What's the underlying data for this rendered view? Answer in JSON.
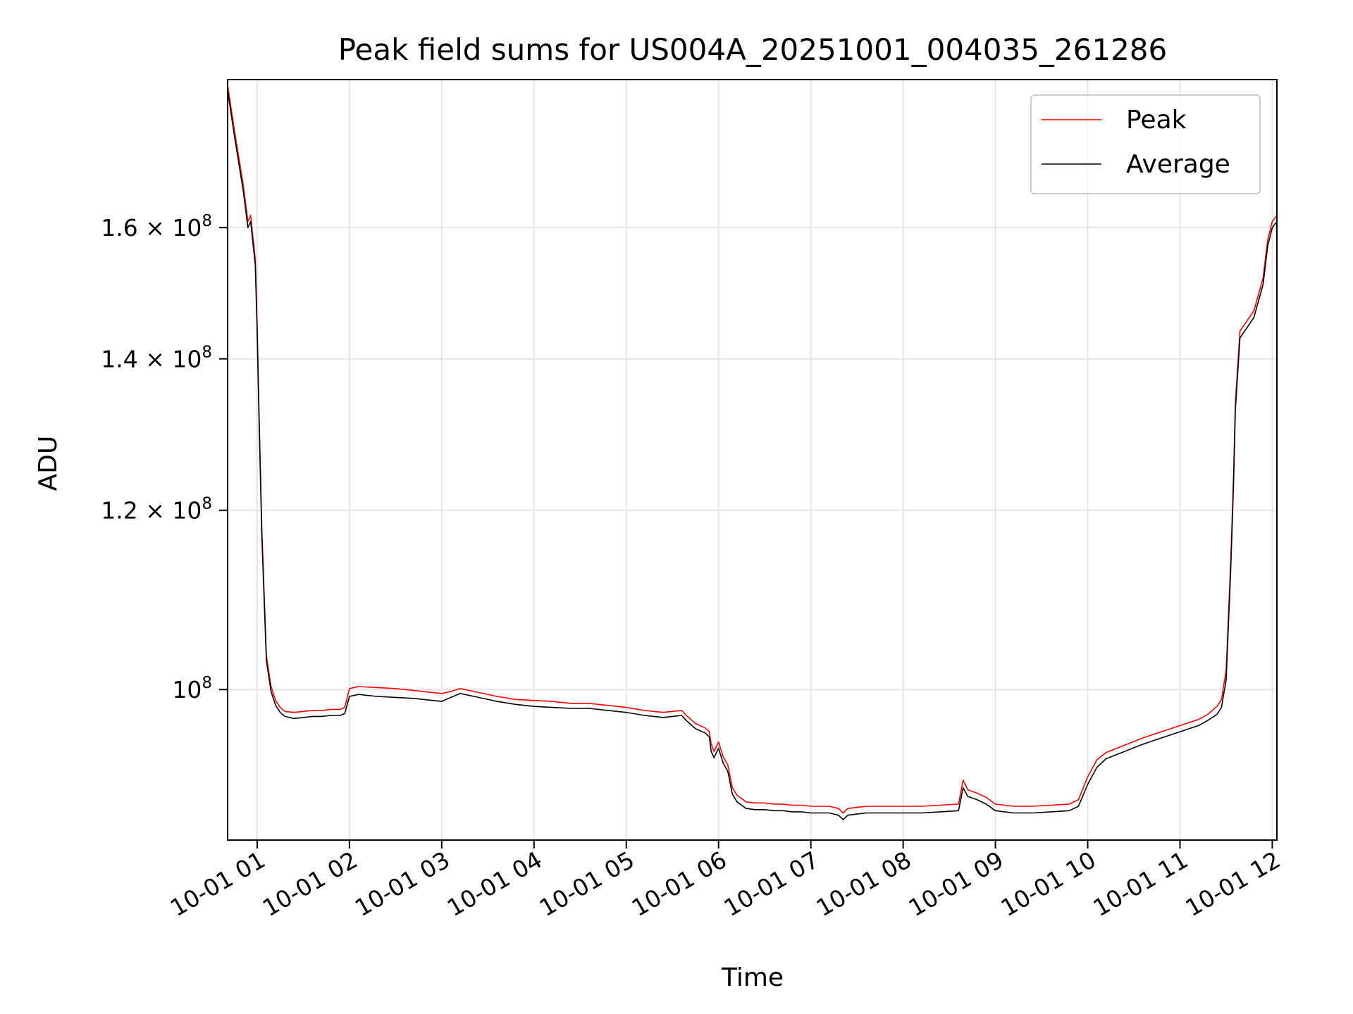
{
  "chart_data": {
    "type": "line",
    "title": "Peak field sums for US004A_20251001_004035_261286",
    "xlabel": "Time",
    "ylabel": "ADU",
    "yscale": "log",
    "xlim": [
      0.68,
      12.05
    ],
    "ylim": [
      85800000,
      186000000
    ],
    "x_ticks": [
      {
        "value": 1,
        "label": "10-01 01"
      },
      {
        "value": 2,
        "label": "10-01 02"
      },
      {
        "value": 3,
        "label": "10-01 03"
      },
      {
        "value": 4,
        "label": "10-01 04"
      },
      {
        "value": 5,
        "label": "10-01 05"
      },
      {
        "value": 6,
        "label": "10-01 06"
      },
      {
        "value": 7,
        "label": "10-01 07"
      },
      {
        "value": 8,
        "label": "10-01 08"
      },
      {
        "value": 9,
        "label": "10-01 09"
      },
      {
        "value": 10,
        "label": "10-01 10"
      },
      {
        "value": 11,
        "label": "10-01 11"
      },
      {
        "value": 12,
        "label": "10-01 12"
      }
    ],
    "y_ticks": [
      {
        "value": 100000000,
        "mant": "10",
        "exp": "8"
      },
      {
        "value": 120000000,
        "mant": "1.2 × 10",
        "exp": "8"
      },
      {
        "value": 140000000,
        "mant": "1.4 × 10",
        "exp": "8"
      },
      {
        "value": 160000000,
        "mant": "1.6 × 10",
        "exp": "8"
      }
    ],
    "grid": true,
    "legend_position": "top-right",
    "series": [
      {
        "name": "Peak",
        "color": "#ff0000",
        "x": [
          0.68,
          0.75,
          0.85,
          0.9,
          0.93,
          0.95,
          0.98,
          1.0,
          1.02,
          1.05,
          1.1,
          1.15,
          1.2,
          1.25,
          1.3,
          1.4,
          1.5,
          1.6,
          1.7,
          1.8,
          1.9,
          1.95,
          2.0,
          2.1,
          2.3,
          2.5,
          2.7,
          2.9,
          3.0,
          3.1,
          3.2,
          3.4,
          3.6,
          3.8,
          4.0,
          4.2,
          4.4,
          4.6,
          4.8,
          5.0,
          5.2,
          5.4,
          5.5,
          5.6,
          5.65,
          5.7,
          5.75,
          5.85,
          5.9,
          5.92,
          5.95,
          6.0,
          6.05,
          6.1,
          6.15,
          6.2,
          6.25,
          6.3,
          6.4,
          6.5,
          6.6,
          6.7,
          6.8,
          6.9,
          7.0,
          7.1,
          7.2,
          7.3,
          7.35,
          7.4,
          7.5,
          7.6,
          7.8,
          8.0,
          8.2,
          8.4,
          8.6,
          8.65,
          8.7,
          8.8,
          8.9,
          9.0,
          9.2,
          9.4,
          9.6,
          9.8,
          9.9,
          10.0,
          10.1,
          10.2,
          10.4,
          10.6,
          10.8,
          11.0,
          11.2,
          11.3,
          11.4,
          11.45,
          11.5,
          11.55,
          11.58,
          11.6,
          11.65,
          11.7,
          11.8,
          11.9,
          11.95,
          12.0,
          12.05
        ],
        "y": [
          185000000,
          177000000,
          167000000,
          161000000,
          162000000,
          159000000,
          155000000,
          145000000,
          133000000,
          118000000,
          103500000,
          100300000,
          98900000,
          98200000,
          97800000,
          97700000,
          97800000,
          97900000,
          97900000,
          98000000,
          98000000,
          98200000,
          100100000,
          100300000,
          100200000,
          100100000,
          99900000,
          99700000,
          99600000,
          99800000,
          100100000,
          99700000,
          99300000,
          99000000,
          98900000,
          98800000,
          98600000,
          98600000,
          98400000,
          98200000,
          97900000,
          97700000,
          97800000,
          97900000,
          97400000,
          97000000,
          96600000,
          96200000,
          95800000,
          94600000,
          93900000,
          94800000,
          93400000,
          92600000,
          90500000,
          89800000,
          89500000,
          89200000,
          89100000,
          89100000,
          89000000,
          89000000,
          88900000,
          88900000,
          88800000,
          88800000,
          88800000,
          88600000,
          88200000,
          88600000,
          88700000,
          88800000,
          88800000,
          88800000,
          88800000,
          88900000,
          89000000,
          91200000,
          90300000,
          90000000,
          89600000,
          89000000,
          88800000,
          88800000,
          88900000,
          89000000,
          89400000,
          91500000,
          93100000,
          93800000,
          94500000,
          95200000,
          95800000,
          96400000,
          97000000,
          97500000,
          98300000,
          99000000,
          102000000,
          114000000,
          124000000,
          134000000,
          144000000,
          145000000,
          147000000,
          152000000,
          158000000,
          161000000,
          162000000
        ]
      },
      {
        "name": "Average",
        "color": "#000000",
        "x": [
          0.68,
          0.75,
          0.85,
          0.9,
          0.93,
          0.95,
          0.98,
          1.0,
          1.02,
          1.05,
          1.1,
          1.15,
          1.2,
          1.25,
          1.3,
          1.4,
          1.5,
          1.6,
          1.7,
          1.8,
          1.9,
          1.95,
          2.0,
          2.1,
          2.3,
          2.5,
          2.7,
          2.9,
          3.0,
          3.1,
          3.2,
          3.4,
          3.6,
          3.8,
          4.0,
          4.2,
          4.4,
          4.6,
          4.8,
          5.0,
          5.2,
          5.4,
          5.5,
          5.6,
          5.65,
          5.7,
          5.75,
          5.85,
          5.9,
          5.92,
          5.95,
          6.0,
          6.05,
          6.1,
          6.15,
          6.2,
          6.25,
          6.3,
          6.4,
          6.5,
          6.6,
          6.7,
          6.8,
          6.9,
          7.0,
          7.1,
          7.2,
          7.3,
          7.35,
          7.4,
          7.5,
          7.6,
          7.8,
          8.0,
          8.2,
          8.4,
          8.6,
          8.65,
          8.7,
          8.8,
          8.9,
          9.0,
          9.2,
          9.4,
          9.6,
          9.8,
          9.9,
          10.0,
          10.1,
          10.2,
          10.4,
          10.6,
          10.8,
          11.0,
          11.2,
          11.3,
          11.4,
          11.45,
          11.5,
          11.55,
          11.58,
          11.6,
          11.65,
          11.7,
          11.8,
          11.9,
          11.95,
          12.0,
          12.05
        ],
        "y": [
          184000000,
          176000000,
          166000000,
          160000000,
          161000000,
          158000000,
          154000000,
          144000000,
          132000000,
          117000000,
          103000000,
          99800000,
          98400000,
          97700000,
          97300000,
          97100000,
          97200000,
          97300000,
          97300000,
          97400000,
          97400000,
          97600000,
          99300000,
          99500000,
          99300000,
          99200000,
          99100000,
          98900000,
          98800000,
          99200000,
          99600000,
          99200000,
          98800000,
          98500000,
          98300000,
          98200000,
          98100000,
          98100000,
          97900000,
          97700000,
          97400000,
          97200000,
          97300000,
          97400000,
          96900000,
          96500000,
          96100000,
          95700000,
          95300000,
          93900000,
          93300000,
          94200000,
          92800000,
          92000000,
          89900000,
          89200000,
          88900000,
          88600000,
          88500000,
          88500000,
          88400000,
          88400000,
          88300000,
          88300000,
          88200000,
          88200000,
          88200000,
          88000000,
          87600000,
          88000000,
          88100000,
          88200000,
          88200000,
          88200000,
          88200000,
          88300000,
          88400000,
          90500000,
          89700000,
          89400000,
          89000000,
          88400000,
          88200000,
          88200000,
          88300000,
          88400000,
          88800000,
          90800000,
          92400000,
          93200000,
          93900000,
          94600000,
          95200000,
          95800000,
          96400000,
          96900000,
          97500000,
          98200000,
          101000000,
          113000000,
          123000000,
          133000000,
          143000000,
          144000000,
          146000000,
          151000000,
          157000000,
          160000000,
          161000000
        ]
      }
    ]
  }
}
